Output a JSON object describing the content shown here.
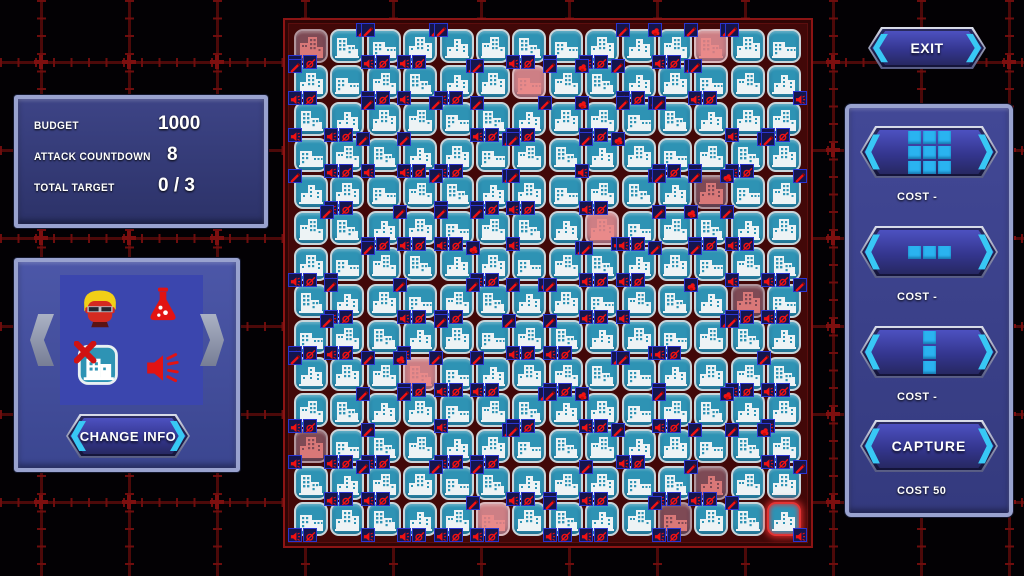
{
  "hud": {
    "stats": [
      {
        "label": "BUDGET",
        "value": "1000"
      },
      {
        "label": "ATTACK COUNTDOWN",
        "value": "8"
      },
      {
        "label": "TOTAL TARGET",
        "value": "0 / 3"
      }
    ],
    "exit_label": "EXIT",
    "change_info_label": "CHANGE INFO",
    "char_icons": [
      "agent-face-icon",
      "flask-icon",
      "building-ban-icon",
      "megaphone-icon"
    ],
    "shop": [
      {
        "icon": "pattern-3x3",
        "label": "",
        "cost": "COST -"
      },
      {
        "icon": "pattern-row-3",
        "label": "",
        "cost": "COST -"
      },
      {
        "icon": "pattern-col-3",
        "label": "",
        "cost": "COST -"
      },
      {
        "icon": "text",
        "label": "CAPTURE",
        "cost": "COST 50"
      }
    ]
  },
  "colors": {
    "tile_blue": "#2e93b4",
    "tile_border": "#c9d5da",
    "tile_red_bright": "#cd7f85",
    "tile_red_dark": "#7e4a55",
    "building_white": "#edf3f5",
    "building_red_bright": "#e98a8a",
    "building_red_dark": "#d97878",
    "badge_red": "#f01212",
    "accent_cyan": "#38c8f5",
    "board_frame_red": "#8c1414",
    "grid_line_red": "#4c0909"
  },
  "board": {
    "rows": 14,
    "cols": 14,
    "variant_rows": [
      "badcebadcebacd",
      "cdbaecdbaecdbe",
      "aecbdaecbdaecb",
      "dbaecdbaecdbac",
      "ecdbaecdbaecdb",
      "baecdbaecdbaec",
      "cdbaecdbaecdba",
      "aecdbaecdbaecd",
      "dbaecdbaecdbae",
      "ecbadecbadecba",
      "baecdbaecdbaec",
      "cdabecdabecdab",
      "aebcdaebcdaebc",
      "dcaebdcaebdcae"
    ],
    "red_tiles": [
      {
        "r": 0,
        "c": 0,
        "shade": "dark"
      },
      {
        "r": 0,
        "c": 11,
        "shade": "bright"
      },
      {
        "r": 1,
        "c": 6,
        "shade": "bright"
      },
      {
        "r": 4,
        "c": 11,
        "shade": "dark"
      },
      {
        "r": 5,
        "c": 8,
        "shade": "bright"
      },
      {
        "r": 7,
        "c": 12,
        "shade": "dark"
      },
      {
        "r": 9,
        "c": 3,
        "shade": "bright"
      },
      {
        "r": 11,
        "c": 0,
        "shade": "dark"
      },
      {
        "r": 12,
        "c": 11,
        "shade": "dark"
      },
      {
        "r": 13,
        "c": 5,
        "shade": "bright"
      },
      {
        "r": 13,
        "c": 10,
        "shade": "dark"
      }
    ],
    "selected_tile": {
      "r": 13,
      "c": 13
    },
    "badge_icons": [
      "speaker",
      "ban",
      "knife",
      "fist"
    ],
    "badge_combos": {
      "0": [],
      "1": [
        [
          "bl",
          "speaker"
        ],
        [
          "bl2",
          "ban"
        ]
      ],
      "2": [
        [
          "tl",
          "knife"
        ]
      ],
      "3": [
        [
          "tl",
          "knife"
        ],
        [
          "bl",
          "speaker"
        ],
        [
          "bl2",
          "ban"
        ]
      ],
      "4": [
        [
          "tr",
          "fist"
        ],
        [
          "tl",
          "knife"
        ]
      ],
      "5": [
        [
          "bl",
          "speaker"
        ]
      ],
      "6": [
        [
          "tr",
          "knife"
        ]
      ],
      "7": [
        [
          "tr",
          "fist"
        ]
      ],
      "8": [
        [
          "bl",
          "speaker"
        ],
        [
          "bl2",
          "ban"
        ],
        [
          "tr",
          "knife"
        ]
      ],
      "9": [
        [
          "br",
          "speaker"
        ]
      ]
    },
    "badge_rows": [
      "16382015148620",
      "30158204616309",
      "51260387142051",
      "08531629401582",
      "21065830172406",
      "60813250914810",
      "15207106380251",
      "03618042157018",
      "81052613091620",
      "20481301625081",
      "16025084103705",
      "51301820610241",
      "08160215308106",
      "10518103161029"
    ]
  }
}
